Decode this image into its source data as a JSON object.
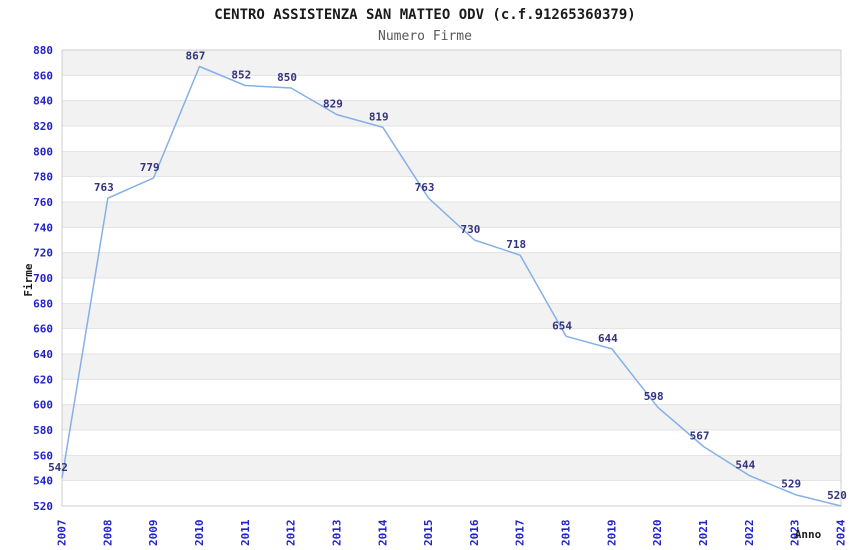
{
  "chart_data": {
    "type": "line",
    "title": "CENTRO ASSISTENZA SAN MATTEO ODV (c.f.91265360379)",
    "subtitle": "Numero Firme",
    "xlabel": "Anno",
    "ylabel": "Firme",
    "categories": [
      "2007",
      "2008",
      "2009",
      "2010",
      "2011",
      "2012",
      "2013",
      "2014",
      "2015",
      "2016",
      "2017",
      "2018",
      "2019",
      "2020",
      "2021",
      "2022",
      "2023",
      "2024"
    ],
    "series": [
      {
        "name": "Numero Firme",
        "values": [
          542,
          763,
          779,
          867,
          852,
          850,
          829,
          819,
          763,
          730,
          718,
          654,
          644,
          598,
          567,
          544,
          529,
          520
        ]
      }
    ],
    "ylim": [
      520,
      880
    ],
    "ytick_step": 20,
    "grid": "horizontal-gridlines-with-alternating-bands",
    "legend_position": "none",
    "colors": {
      "line": "#85b0e8",
      "data_label": "#333380",
      "tick_label": "#2222cc",
      "title": "#1a1a1a",
      "subtitle": "#595959",
      "axis_title": "#1a1a1a",
      "band": "#f2f2f2",
      "gridline": "#e3e3e3",
      "plot_border": "#cfcfcf",
      "background": "#ffffff"
    }
  }
}
